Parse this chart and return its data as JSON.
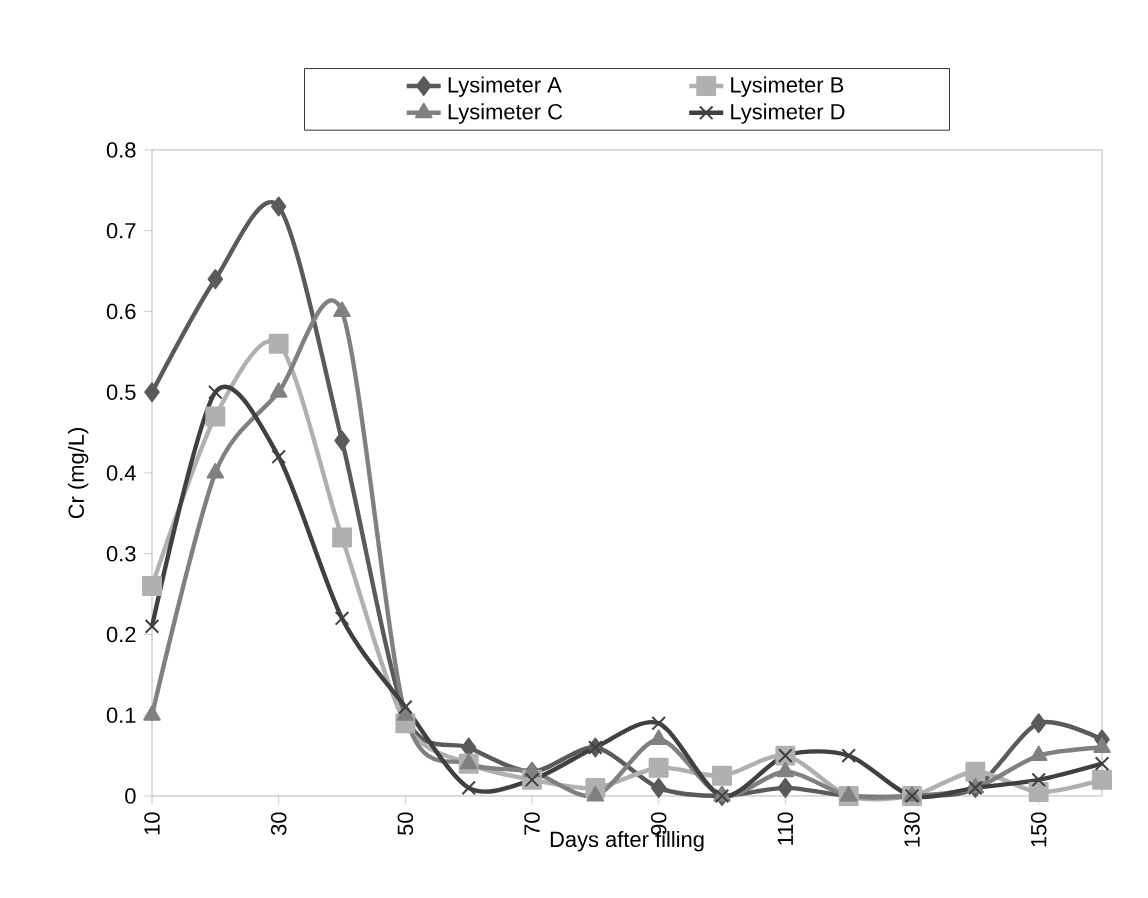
{
  "chart_data": {
    "type": "line",
    "xlabel": "Days after filling",
    "ylabel": "Cr (mg/L)",
    "x": [
      10,
      20,
      30,
      40,
      50,
      60,
      70,
      80,
      90,
      100,
      110,
      120,
      130,
      140,
      150,
      160
    ],
    "xlim": [
      10,
      160
    ],
    "xticks": [
      10,
      30,
      50,
      70,
      90,
      110,
      130,
      150
    ],
    "ylim": [
      0,
      0.8
    ],
    "yticks": [
      0,
      0.1,
      0.2,
      0.3,
      0.4,
      0.5,
      0.6,
      0.7,
      0.8
    ],
    "grid": false,
    "legend": "top",
    "line_style": "solid",
    "series": [
      {
        "name": "Lysimeter A",
        "color": "#5a5a5a",
        "marker": "diamond",
        "values": [
          0.5,
          0.64,
          0.73,
          0.44,
          0.1,
          0.06,
          0.03,
          0.06,
          0.01,
          0.0,
          0.01,
          0.0,
          0.0,
          0.01,
          0.09,
          0.07
        ]
      },
      {
        "name": "Lysimeter B",
        "color": "#b0b0b0",
        "marker": "square",
        "values": [
          0.26,
          0.47,
          0.56,
          0.32,
          0.09,
          0.04,
          0.02,
          0.01,
          0.035,
          0.025,
          0.05,
          0.0,
          0.0,
          0.03,
          0.005,
          0.02
        ]
      },
      {
        "name": "Lysimeter C",
        "color": "#808080",
        "marker": "triangle",
        "values": [
          0.1,
          0.4,
          0.5,
          0.6,
          0.1,
          0.04,
          0.03,
          0.0,
          0.07,
          0.0,
          0.03,
          0.0,
          0.0,
          0.01,
          0.05,
          0.06
        ]
      },
      {
        "name": "Lysimeter D",
        "color": "#404040",
        "marker": "cross",
        "values": [
          0.21,
          0.5,
          0.42,
          0.22,
          0.11,
          0.01,
          0.02,
          0.06,
          0.09,
          0.0,
          0.05,
          0.05,
          0.0,
          0.01,
          0.02,
          0.04
        ]
      }
    ]
  }
}
